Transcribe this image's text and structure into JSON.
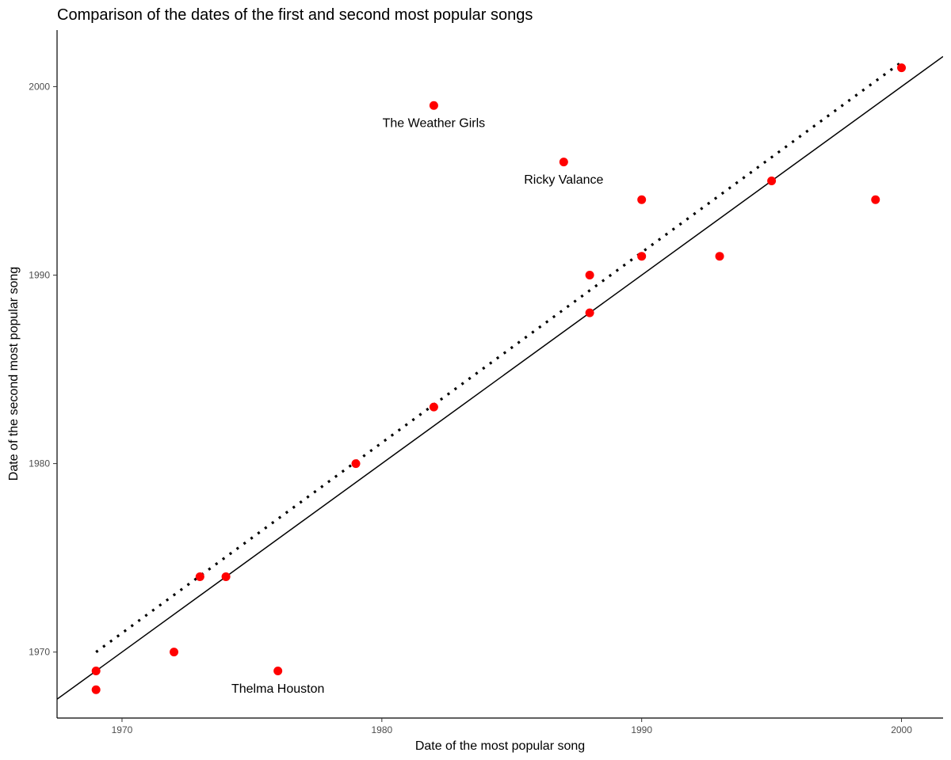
{
  "chart_data": {
    "type": "scatter",
    "title": "Comparison of the dates of the first and second most popular songs",
    "xlabel": "Date of the most popular song",
    "ylabel": "Date of the second most popular song",
    "xlim": [
      1967.5,
      2001.6
    ],
    "ylim": [
      1966.5,
      2003.0
    ],
    "xticks": [
      1970,
      1980,
      1990,
      2000
    ],
    "yticks": [
      1970,
      1980,
      1990,
      2000
    ],
    "grid": false,
    "point_color": "#ff0000",
    "points": [
      {
        "x": 1969,
        "y": 1969
      },
      {
        "x": 1969,
        "y": 1968
      },
      {
        "x": 1972,
        "y": 1970
      },
      {
        "x": 1973,
        "y": 1974
      },
      {
        "x": 1974,
        "y": 1974
      },
      {
        "x": 1976,
        "y": 1969
      },
      {
        "x": 1979,
        "y": 1980
      },
      {
        "x": 1982,
        "y": 1983
      },
      {
        "x": 1982,
        "y": 1999
      },
      {
        "x": 1987,
        "y": 1996
      },
      {
        "x": 1988,
        "y": 1990
      },
      {
        "x": 1988,
        "y": 1988
      },
      {
        "x": 1990,
        "y": 1994
      },
      {
        "x": 1990,
        "y": 1991
      },
      {
        "x": 1993,
        "y": 1991
      },
      {
        "x": 1995,
        "y": 1995
      },
      {
        "x": 1999,
        "y": 1994
      },
      {
        "x": 2000,
        "y": 2001
      }
    ],
    "annotations": [
      {
        "text": "The Weather Girls",
        "x": 1982,
        "y": 1998.1
      },
      {
        "text": "Ricky Valance",
        "x": 1987,
        "y": 1995.1
      },
      {
        "text": "Thelma Houston",
        "x": 1976,
        "y": 1968.1
      }
    ],
    "reference_lines": [
      {
        "style": "solid",
        "color": "#000000",
        "x1": 1967.5,
        "y1": 1967.5,
        "x2": 2001.6,
        "y2": 2001.6
      },
      {
        "style": "dotted",
        "color": "#000000",
        "x1": 1969,
        "y1": 1970,
        "x2": 2000,
        "y2": 2001.3
      }
    ]
  }
}
